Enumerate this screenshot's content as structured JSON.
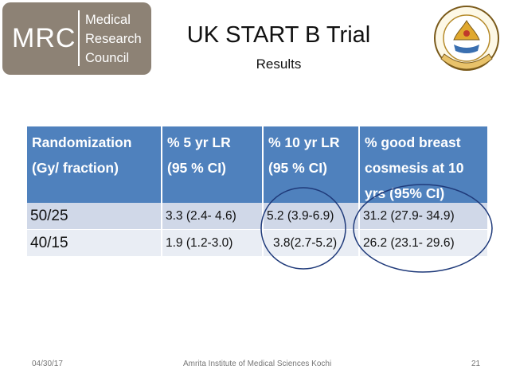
{
  "logo": {
    "mark": "MRC",
    "lines": [
      "Medical",
      "Research",
      "Council"
    ]
  },
  "slide": {
    "title": "UK START B Trial",
    "subtitle": "Results"
  },
  "table": {
    "headers": [
      [
        "Randomization",
        "(Gy/ fraction)"
      ],
      [
        "% 5 yr LR",
        "(95 % CI)"
      ],
      [
        "% 10 yr LR",
        "(95 % CI)"
      ],
      [
        "% good  breast",
        "cosmesis at 10",
        "yrs (95% CI)"
      ]
    ],
    "rows": [
      [
        "50/25",
        "3.3 (2.4- 4.6)",
        "5.2 (3.9-6.9)",
        "31.2 (27.9- 34.9)"
      ],
      [
        "40/15",
        "1.9 (1.2-3.0)",
        "3.8(2.7-5.2)",
        "26.2 (23.1- 29.6)"
      ]
    ]
  },
  "colors": {
    "header_bg": "#4f81bd",
    "row1_bg": "#d0d8e8",
    "row2_bg": "#e9edf4",
    "ellipse_stroke": "#1f3a7a",
    "logo_bg": "#8d8275"
  },
  "footer": {
    "date": "04/30/17",
    "institution": "Amrita Institute of Medical Sciences Kochi",
    "page": "21"
  }
}
